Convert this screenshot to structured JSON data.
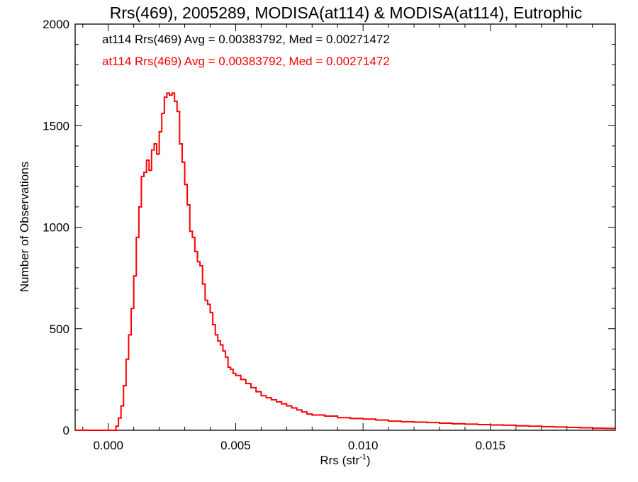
{
  "chart_data": {
    "type": "line",
    "step": true,
    "title": "Rrs(469), 2005289, MODISA(at114) & MODISA(at114), Eutrophic",
    "xlabel": {
      "text": "Rrs (str",
      "sup": "-1",
      "suffix": ")"
    },
    "ylabel": "Number of Observations",
    "xlim": [
      -0.0013,
      0.0199
    ],
    "ylim": [
      0,
      2000
    ],
    "xticks": [
      0.0,
      0.005,
      0.01,
      0.015
    ],
    "xtick_labels": [
      "0.000",
      "0.005",
      "0.010",
      "0.015"
    ],
    "yticks": [
      0,
      500,
      1000,
      1500,
      2000
    ],
    "ytick_labels": [
      "0",
      "500",
      "1000",
      "1500",
      "2000"
    ],
    "grid": false,
    "legend_position": "top-left",
    "annotations": [
      {
        "text": "at114 Rrs(469) Avg = 0.00383792, Med = 0.00271472",
        "color": "#000000"
      },
      {
        "text": "at114 Rrs(469) Avg = 0.00383792, Med = 0.00271472",
        "color": "#ff0000"
      }
    ],
    "series": [
      {
        "color": "#ff0000",
        "points": [
          [
            -0.0013,
            0
          ],
          [
            -0.0002,
            0
          ],
          [
            0.0003,
            20
          ],
          [
            0.0004,
            60
          ],
          [
            0.0005,
            120
          ],
          [
            0.0006,
            220
          ],
          [
            0.0007,
            350
          ],
          [
            0.0008,
            470
          ],
          [
            0.0009,
            600
          ],
          [
            0.001,
            760
          ],
          [
            0.0011,
            950
          ],
          [
            0.0012,
            1100
          ],
          [
            0.0013,
            1250
          ],
          [
            0.0014,
            1270
          ],
          [
            0.0015,
            1330
          ],
          [
            0.0016,
            1280
          ],
          [
            0.0017,
            1380
          ],
          [
            0.0018,
            1410
          ],
          [
            0.0019,
            1360
          ],
          [
            0.002,
            1470
          ],
          [
            0.0021,
            1560
          ],
          [
            0.0022,
            1640
          ],
          [
            0.0023,
            1660
          ],
          [
            0.0024,
            1650
          ],
          [
            0.0025,
            1660
          ],
          [
            0.0026,
            1620
          ],
          [
            0.0027,
            1570
          ],
          [
            0.0028,
            1410
          ],
          [
            0.0029,
            1320
          ],
          [
            0.003,
            1210
          ],
          [
            0.0031,
            1110
          ],
          [
            0.0032,
            980
          ],
          [
            0.0033,
            950
          ],
          [
            0.0034,
            880
          ],
          [
            0.0035,
            830
          ],
          [
            0.0036,
            810
          ],
          [
            0.0037,
            720
          ],
          [
            0.0038,
            640
          ],
          [
            0.0039,
            620
          ],
          [
            0.004,
            580
          ],
          [
            0.0041,
            520
          ],
          [
            0.0042,
            470
          ],
          [
            0.0043,
            440
          ],
          [
            0.0044,
            420
          ],
          [
            0.0045,
            390
          ],
          [
            0.0046,
            360
          ],
          [
            0.0047,
            310
          ],
          [
            0.0048,
            300
          ],
          [
            0.0049,
            280
          ],
          [
            0.005,
            270
          ],
          [
            0.0052,
            250
          ],
          [
            0.0054,
            230
          ],
          [
            0.0056,
            210
          ],
          [
            0.0058,
            190
          ],
          [
            0.006,
            170
          ],
          [
            0.0062,
            160
          ],
          [
            0.0064,
            150
          ],
          [
            0.0066,
            140
          ],
          [
            0.0068,
            130
          ],
          [
            0.007,
            120
          ],
          [
            0.0072,
            110
          ],
          [
            0.0074,
            100
          ],
          [
            0.0076,
            90
          ],
          [
            0.0078,
            80
          ],
          [
            0.008,
            75
          ],
          [
            0.0085,
            70
          ],
          [
            0.009,
            62
          ],
          [
            0.0095,
            58
          ],
          [
            0.01,
            55
          ],
          [
            0.0105,
            50
          ],
          [
            0.011,
            45
          ],
          [
            0.0115,
            42
          ],
          [
            0.012,
            40
          ],
          [
            0.0125,
            38
          ],
          [
            0.013,
            35
          ],
          [
            0.0135,
            32
          ],
          [
            0.014,
            30
          ],
          [
            0.0145,
            28
          ],
          [
            0.015,
            26
          ],
          [
            0.0155,
            25
          ],
          [
            0.016,
            22
          ],
          [
            0.0165,
            20
          ],
          [
            0.017,
            18
          ],
          [
            0.0175,
            16
          ],
          [
            0.018,
            14
          ],
          [
            0.0185,
            12
          ],
          [
            0.019,
            10
          ],
          [
            0.0195,
            9
          ],
          [
            0.0199,
            8
          ]
        ]
      }
    ]
  }
}
